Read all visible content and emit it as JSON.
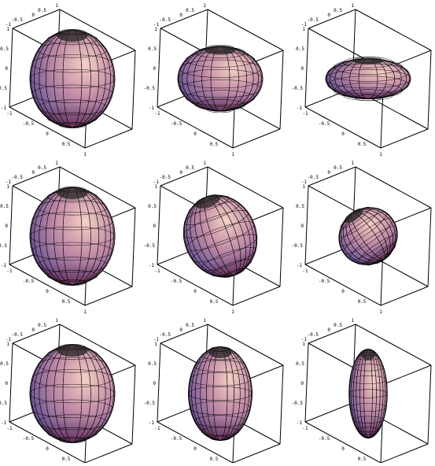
{
  "figure": {
    "panels": [
      {
        "row": 1,
        "col": 1,
        "shape": "sphere",
        "semi_axes": [
          1,
          1,
          1
        ],
        "tilt_deg": 0
      },
      {
        "row": 1,
        "col": 2,
        "shape": "oblate-ellipsoid",
        "semi_axes": [
          1,
          1,
          0.6
        ],
        "tilt_deg": 0
      },
      {
        "row": 1,
        "col": 3,
        "shape": "oblate-ellipsoid",
        "semi_axes": [
          1,
          1,
          0.3
        ],
        "tilt_deg": 0
      },
      {
        "row": 2,
        "col": 1,
        "shape": "sphere",
        "semi_axes": [
          1,
          1,
          1
        ],
        "tilt_deg": 0
      },
      {
        "row": 2,
        "col": 2,
        "shape": "tilted-ellipsoid",
        "semi_axes": [
          0.85,
          0.85,
          0.85
        ],
        "tilt_deg": 20
      },
      {
        "row": 2,
        "col": 3,
        "shape": "tilted-ellipsoid",
        "semi_axes": [
          0.7,
          0.7,
          0.55
        ],
        "tilt_deg": 35
      },
      {
        "row": 3,
        "col": 1,
        "shape": "sphere",
        "semi_axes": [
          1,
          1,
          1
        ],
        "tilt_deg": 0
      },
      {
        "row": 3,
        "col": 2,
        "shape": "prolate-ellipsoid",
        "semi_axes": [
          0.75,
          0.75,
          1
        ],
        "tilt_deg": 0
      },
      {
        "row": 3,
        "col": 3,
        "shape": "prolate-ellipsoid",
        "semi_axes": [
          0.45,
          0.45,
          1
        ],
        "tilt_deg": 0
      }
    ],
    "tick_labels": {
      "y_axis": [
        "-1",
        "-0.5",
        "0",
        "0.5",
        "1"
      ],
      "x_axis": [
        "-1",
        "-0.5",
        "0",
        "0.5",
        "1"
      ],
      "z_axis": [
        "-1",
        "-0.5",
        "0",
        "0.5",
        "1"
      ]
    },
    "colors": {
      "box": "#000000",
      "mesh": "#000000",
      "fill_light": "#f0c8c0",
      "fill_mid": "#b87fa3",
      "fill_dark": "#5b4a8a",
      "fill_shadow": "#7a2840"
    }
  }
}
